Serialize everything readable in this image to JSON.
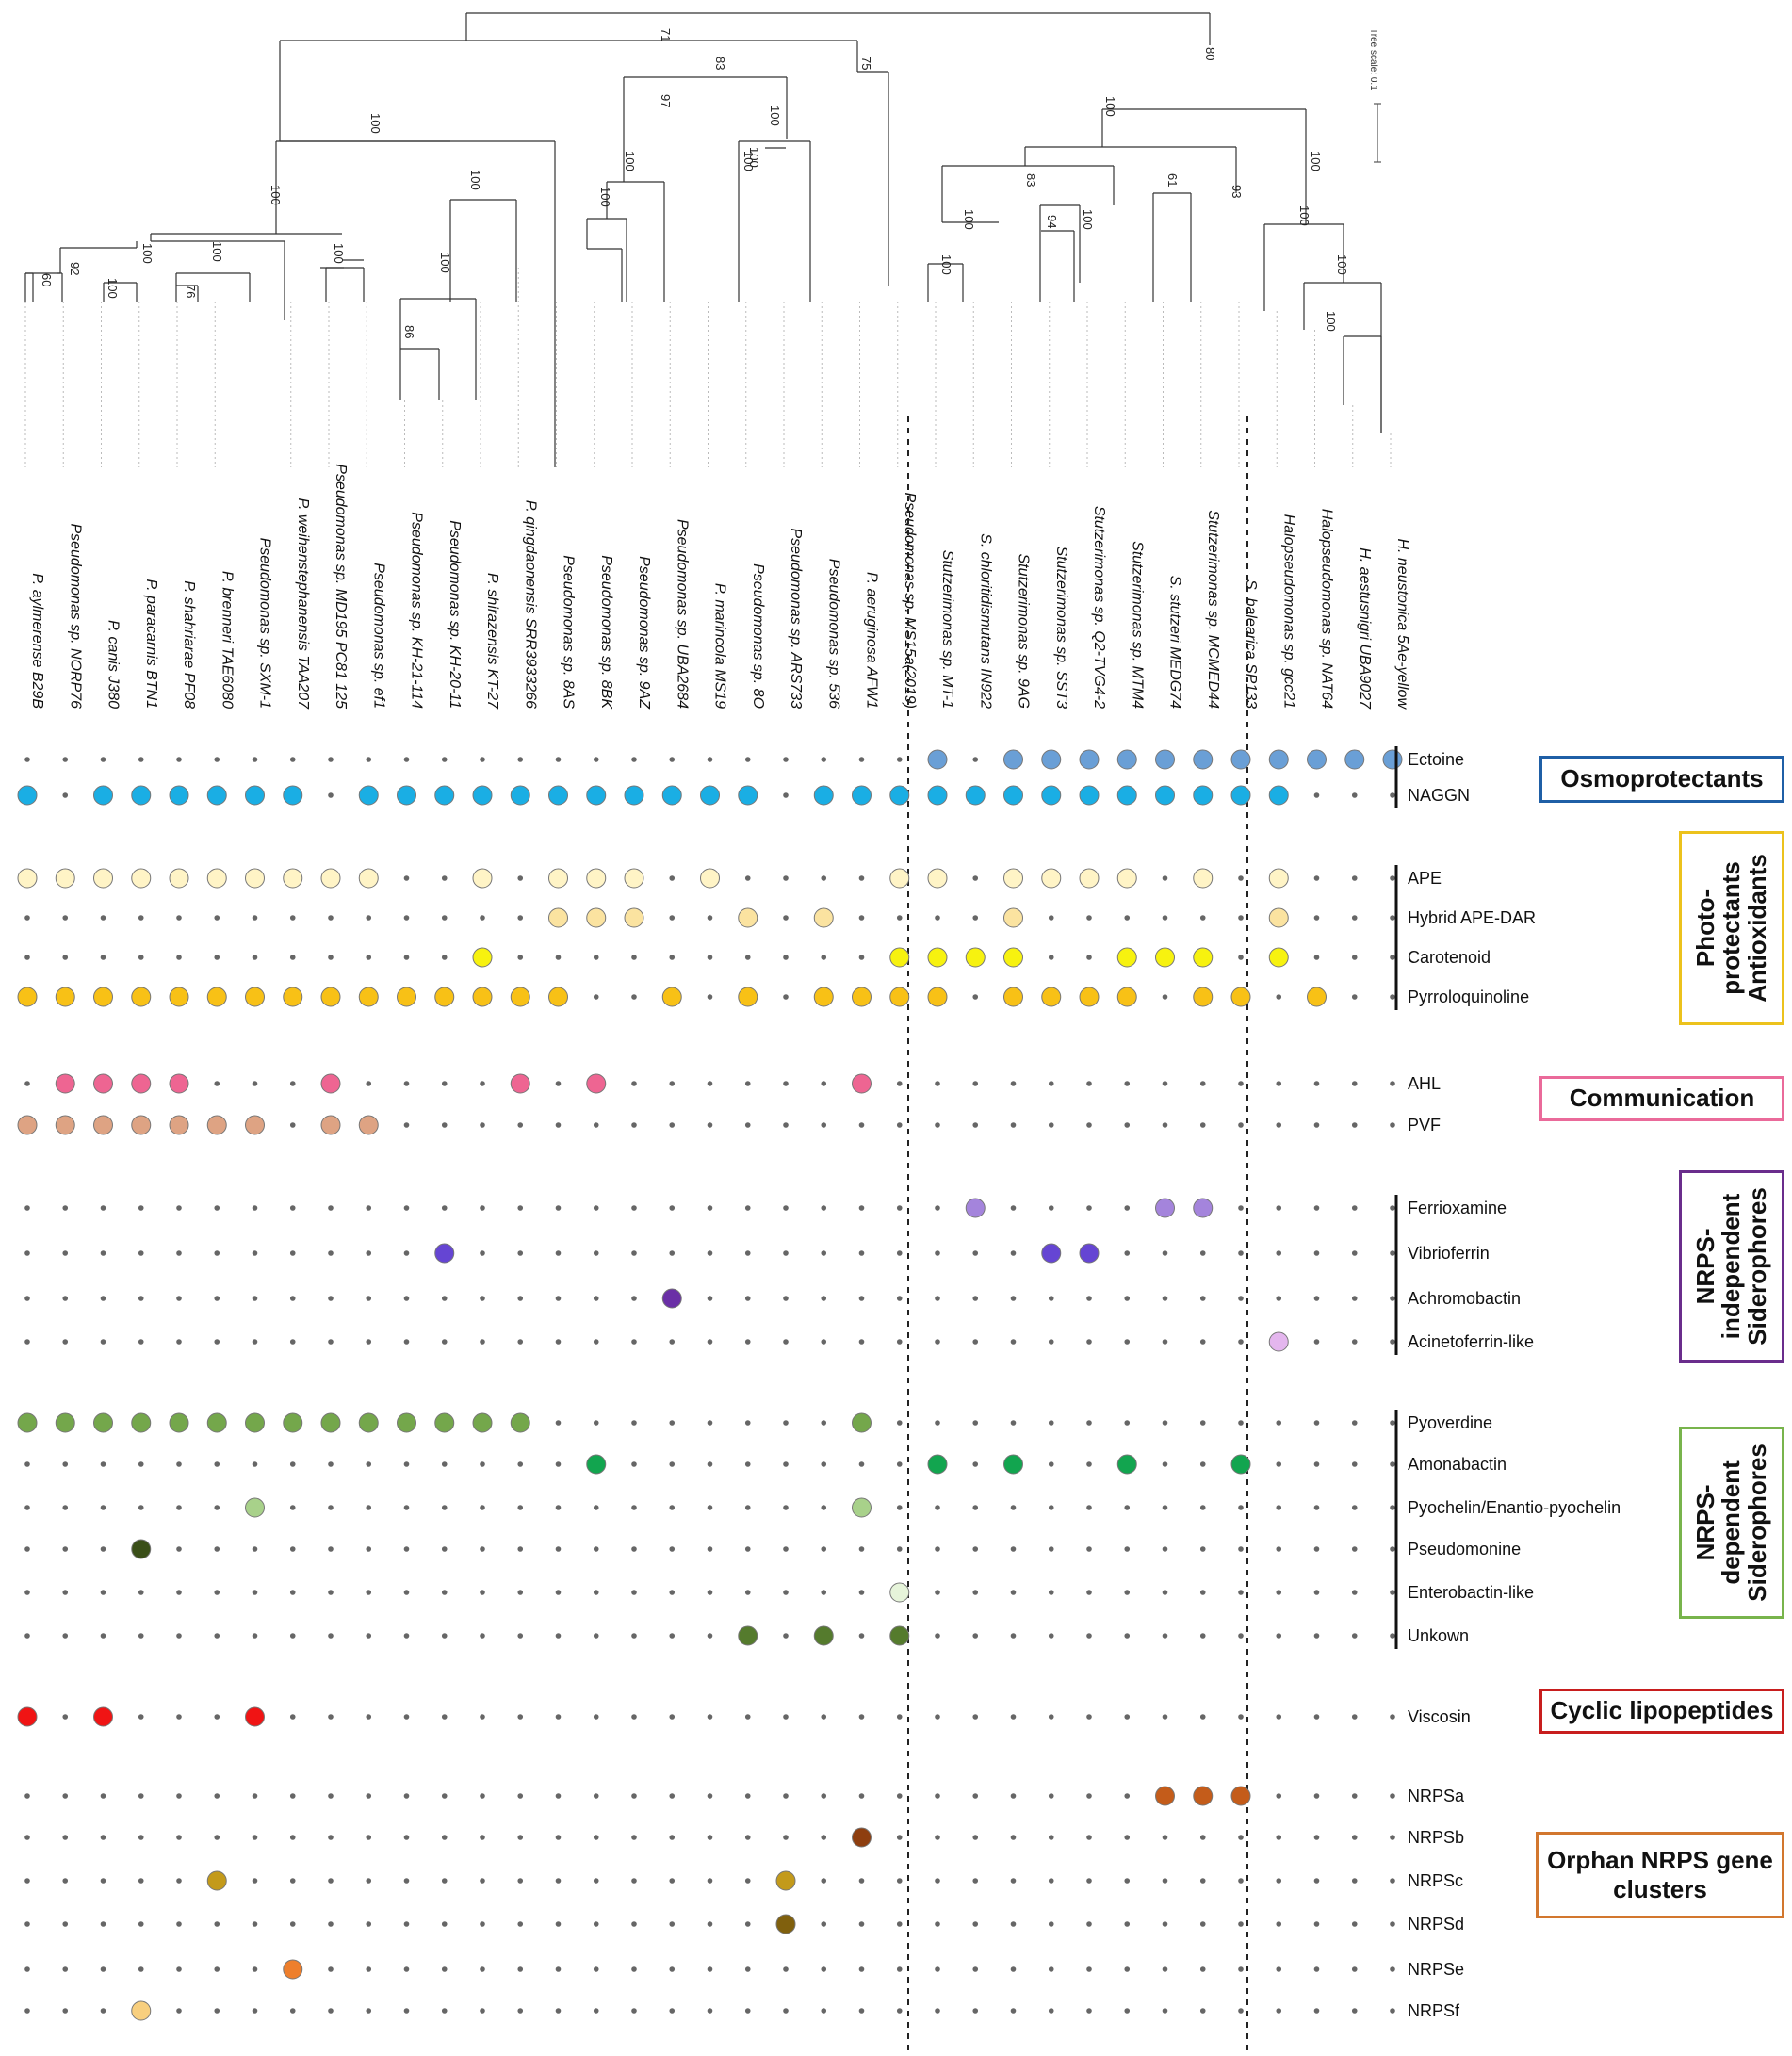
{
  "taxa": [
    "P. aylmerense B29B",
    "Pseudomonas sp. NORP76",
    "P. canis J380",
    "P. paracarnis BTN1",
    "P. shahriarae PF08",
    "P. brenneri TAE6080",
    "Pseudomonas sp. SXM-1",
    "P. weihenstephanensis TAA207",
    "Pseudomonas sp. MD195 PC81 125",
    "Pseudomonas sp. ef1",
    "Pseudomonas sp. KH-21-114",
    "Pseudomonas sp. KH-20-11",
    "P. shirazensis KT-27",
    "P. qingdaonensis SRR3933266",
    "Pseudomonas sp. 8AS",
    "Pseudomonas sp. 8BK",
    "Pseudomonas sp. 9AZ",
    "Pseudomonas sp. UBA2684",
    "P. marincola MS19",
    "Pseudomonas sp. 8O",
    "Pseudomonas sp. ARS733",
    "Pseudomonas sp. 536",
    "P. aeruginosa AFW1",
    "Pseudomonas sp. MS15a(2019)",
    "Stutzerimonas sp. MT-1",
    "S. chloritidismutans IN922",
    "Stutzerimonas sp. 9AG",
    "Stutzerimonas sp. SST3",
    "Stutzerimonas sp. Q2-TVG4-2",
    "Stutzerimonas sp. MTM4",
    "S. stutzeri MEDG74",
    "Stutzerimonas sp. MCMED44",
    "S. balearica SP133",
    "Halopseudomonas sp. gcc21",
    "Halopseudomonas sp. NAT64",
    "H. aestusnigri UBA9027",
    "H. neustonica 5Ae-yellow"
  ],
  "traits": [
    {
      "name": "Ectoine",
      "color": "#6a9fd6",
      "present": [
        24,
        26,
        27,
        28,
        29,
        30,
        31,
        32,
        33,
        34,
        35,
        36
      ]
    },
    {
      "name": "NAGGN",
      "color": "#1aaee4",
      "present": [
        0,
        2,
        3,
        4,
        5,
        6,
        7,
        9,
        10,
        11,
        12,
        13,
        14,
        15,
        16,
        17,
        18,
        19,
        21,
        22,
        23,
        24,
        25,
        26,
        27,
        28,
        29,
        30,
        31,
        32,
        33
      ]
    },
    {
      "name": "APE",
      "color": "#fff4c6",
      "present": [
        0,
        1,
        2,
        3,
        4,
        5,
        6,
        7,
        8,
        9,
        12,
        14,
        15,
        16,
        18,
        23,
        24,
        26,
        27,
        28,
        29,
        31,
        33
      ]
    },
    {
      "name": "Hybrid APE-DAR",
      "color": "#fbe3a0",
      "present": [
        14,
        15,
        16,
        19,
        21,
        26,
        33
      ]
    },
    {
      "name": "Carotenoid",
      "color": "#f7f20f",
      "present": [
        12,
        23,
        24,
        25,
        26,
        29,
        30,
        31,
        33
      ]
    },
    {
      "name": "Pyrroloquinoline",
      "color": "#f8c116",
      "present": [
        0,
        1,
        2,
        3,
        4,
        5,
        6,
        7,
        8,
        9,
        10,
        11,
        12,
        13,
        14,
        17,
        19,
        21,
        22,
        23,
        24,
        26,
        27,
        28,
        29,
        31,
        32,
        34
      ]
    },
    {
      "name": "AHL",
      "color": "#ee6592",
      "present": [
        1,
        2,
        3,
        4,
        8,
        13,
        15,
        22
      ]
    },
    {
      "name": "PVF",
      "color": "#dea383",
      "present": [
        0,
        1,
        2,
        3,
        4,
        5,
        6,
        8,
        9
      ]
    },
    {
      "name": "Ferrioxamine",
      "color": "#a484dc",
      "present": [
        25,
        30,
        31
      ]
    },
    {
      "name": "Vibrioferrin",
      "color": "#6545d3",
      "present": [
        11,
        27,
        28
      ]
    },
    {
      "name": "Achromobactin",
      "color": "#6a2fa6",
      "present": [
        17
      ]
    },
    {
      "name": "Acinetoferrin-like",
      "color": "#e4b6ee",
      "present": [
        33
      ]
    },
    {
      "name": "Pyoverdine",
      "color": "#74a74b",
      "present": [
        0,
        1,
        2,
        3,
        4,
        5,
        6,
        7,
        8,
        9,
        10,
        11,
        12,
        13,
        22
      ]
    },
    {
      "name": "Amonabactin",
      "color": "#12a54f",
      "present": [
        15,
        24,
        26,
        29,
        32
      ]
    },
    {
      "name": "Pyochelin/Enantio-pyochelin",
      "color": "#a8d18a",
      "present": [
        6,
        22
      ]
    },
    {
      "name": "Pseudomonine",
      "color": "#3a4f18",
      "present": [
        3
      ]
    },
    {
      "name": "Enterobactin-like",
      "color": "#e6f4da",
      "present": [
        23
      ]
    },
    {
      "name": "Unkown",
      "color": "#557b2d",
      "present": [
        19,
        21,
        23
      ]
    },
    {
      "name": "Viscosin",
      "color": "#f01414",
      "present": [
        0,
        2,
        6
      ]
    },
    {
      "name": "NRPSa",
      "color": "#c45c1a",
      "present": [
        30,
        31,
        32
      ]
    },
    {
      "name": "NRPSb",
      "color": "#8e3e0f",
      "present": [
        22
      ]
    },
    {
      "name": "NRPSc",
      "color": "#c39a1a",
      "present": [
        5,
        20
      ]
    },
    {
      "name": "NRPSd",
      "color": "#80600d",
      "present": [
        20
      ]
    },
    {
      "name": "NRPSe",
      "color": "#ee7f2c",
      "present": [
        7
      ]
    },
    {
      "name": "NRPSf",
      "color": "#f8cf7e",
      "present": [
        3
      ]
    }
  ],
  "categories": [
    {
      "id": "osmo",
      "label": "Osmoprotectants",
      "color": "#1f5fa6"
    },
    {
      "id": "photo",
      "label": "Photo-\nprotectants\nAntioxidants",
      "color": "#ecc21c"
    },
    {
      "id": "comm",
      "label": "Communication",
      "color": "#ea6a9a"
    },
    {
      "id": "nrps_ind",
      "label": "NRPS-\nindependent\nSiderophores",
      "color": "#6a2d8c"
    },
    {
      "id": "nrps_dep",
      "label": "NRPS-\ndependent\nSiderophores",
      "color": "#78b44c"
    },
    {
      "id": "clp",
      "label": "Cyclic lipopeptides",
      "color": "#c81e1e"
    },
    {
      "id": "orphan",
      "label": "Orphan NRPS gene\nclusters",
      "color": "#d2772e"
    }
  ],
  "bootstrap": [
    "71",
    "83",
    "75",
    "80",
    "100",
    "100",
    "100",
    "100",
    "100",
    "92",
    "60",
    "100",
    "76",
    "100",
    "100",
    "86",
    "100",
    "100",
    "97",
    "100",
    "100",
    "100",
    "100",
    "83",
    "100",
    "100",
    "100",
    "94",
    "100",
    "100",
    "61",
    "100",
    "93",
    "100"
  ],
  "tree_scale": "Tree scale: 0.1"
}
